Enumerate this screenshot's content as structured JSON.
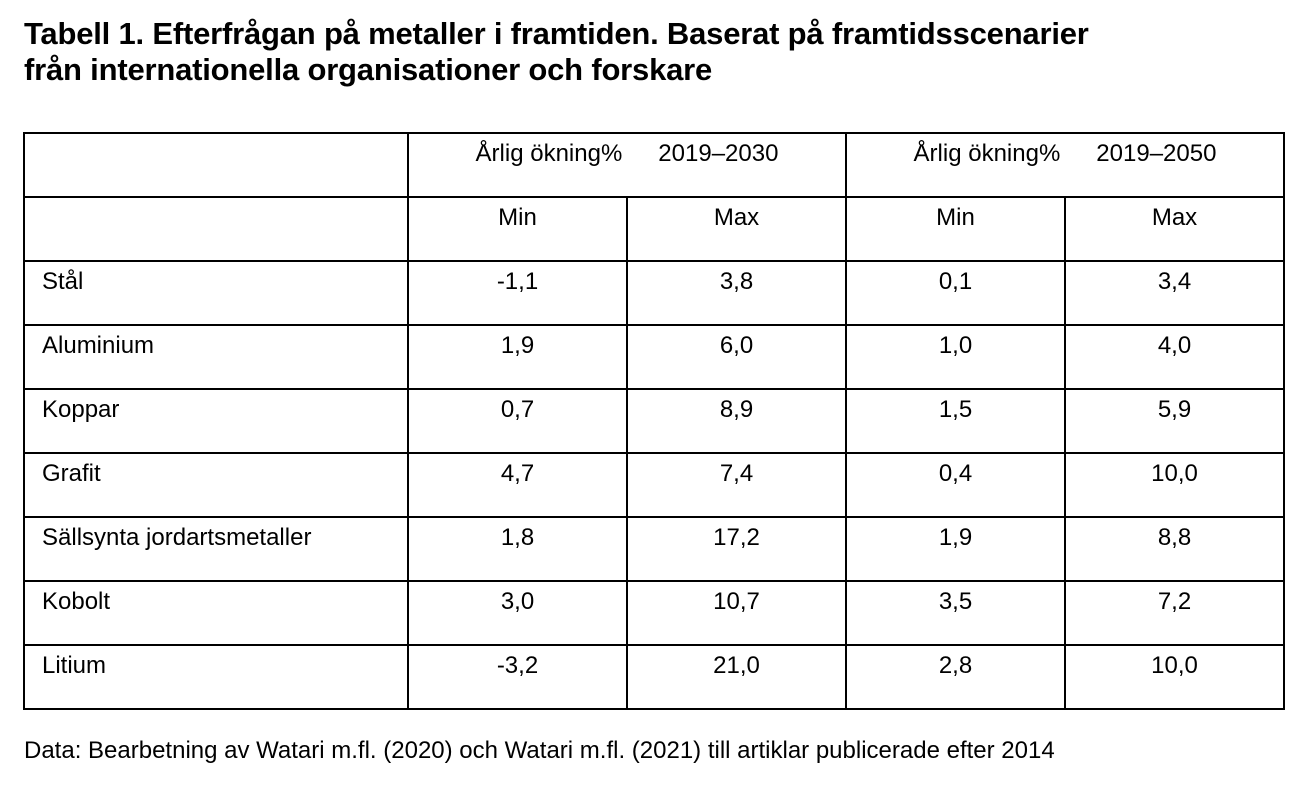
{
  "title": {
    "line1": "Tabell 1. Efterfrågan på metaller i framtiden. Baserat på framtidsscenarier",
    "line2": "från internationella organisationer och forskare"
  },
  "table": {
    "group_headers": [
      {
        "label": "Årlig ökning%",
        "period": "2019–2030"
      },
      {
        "label": "Årlig ökning%",
        "period": "2019–2050"
      }
    ],
    "sub_headers": [
      "Min",
      "Max",
      "Min",
      "Max"
    ],
    "rows": [
      {
        "name": "Stål",
        "values": [
          "-1,1",
          "3,8",
          "0,1",
          "3,4"
        ]
      },
      {
        "name": "Aluminium",
        "values": [
          "1,9",
          "6,0",
          "1,0",
          "4,0"
        ]
      },
      {
        "name": "Koppar",
        "values": [
          "0,7",
          "8,9",
          "1,5",
          "5,9"
        ]
      },
      {
        "name": "Grafit",
        "values": [
          "4,7",
          "7,4",
          "0,4",
          "10,0"
        ]
      },
      {
        "name": "Sällsynta jordartsmetaller",
        "values": [
          "1,8",
          "17,2",
          "1,9",
          "8,8"
        ]
      },
      {
        "name": "Kobolt",
        "values": [
          "3,0",
          "10,7",
          "3,5",
          "7,2"
        ]
      },
      {
        "name": "Litium",
        "values": [
          "-3,2",
          "21,0",
          "2,8",
          "10,0"
        ]
      }
    ]
  },
  "source": "Data: Bearbetning av Watari m.fl. (2020) och Watari m.fl. (2021) till artiklar publicerade efter 2014"
}
